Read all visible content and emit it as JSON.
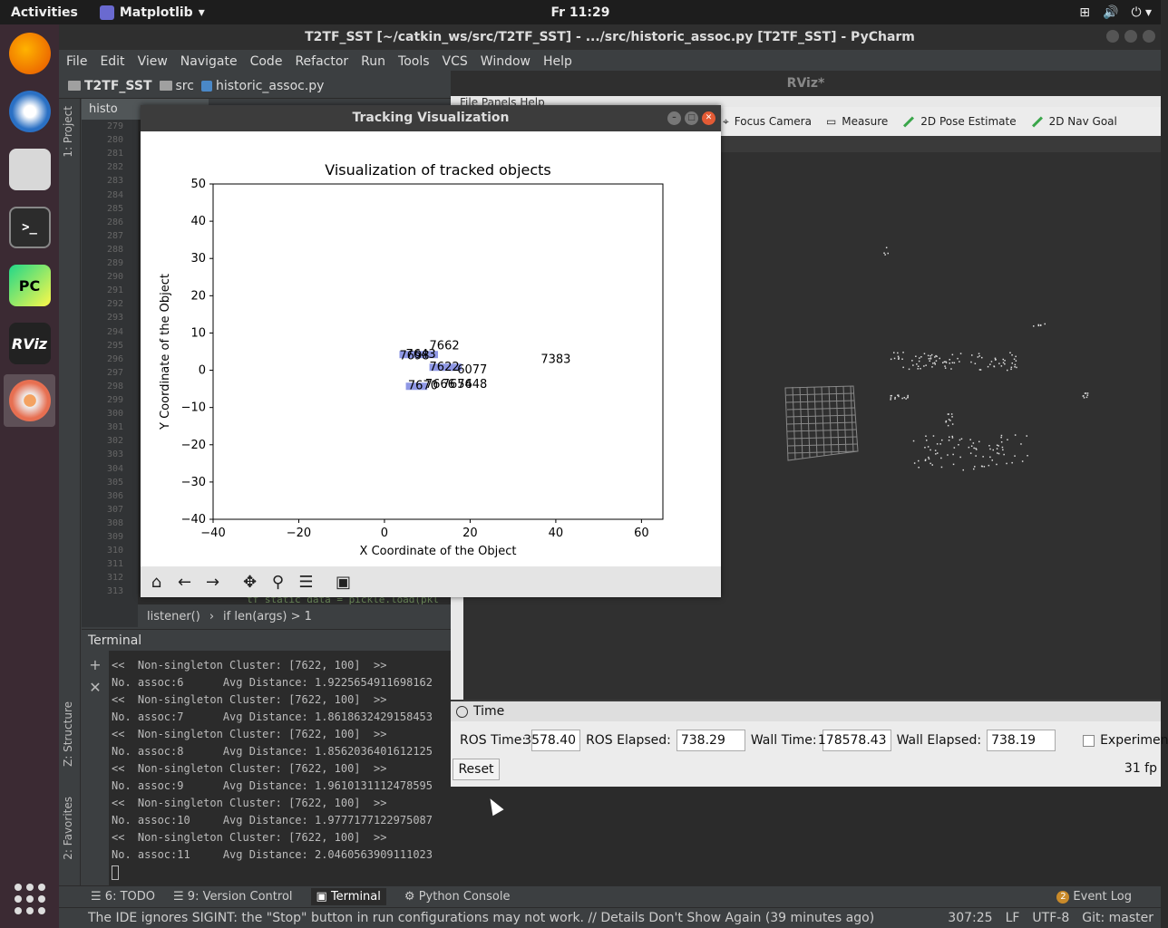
{
  "topbar": {
    "activities": "Activities",
    "app_name": "Matplotlib",
    "clock": "Fr 11:29"
  },
  "dock": {
    "items": [
      "firefox-icon",
      "thunderbird-icon",
      "files-icon",
      "terminal-icon",
      "pycharm-icon",
      "rviz-icon",
      "ros-app-icon"
    ],
    "pycharm_label": "PC",
    "rviz_label": "RViz"
  },
  "pycharm": {
    "title": "T2TF_SST [~/catkin_ws/src/T2TF_SST] - .../src/historic_assoc.py [T2TF_SST] - PyCharm",
    "menu": [
      "File",
      "Edit",
      "View",
      "Navigate",
      "Code",
      "Refactor",
      "Run",
      "Tools",
      "VCS",
      "Window",
      "Help"
    ],
    "nav": {
      "project": "T2TF_SST",
      "folder": "src",
      "file": "historic_assoc.py"
    },
    "editor_tab": "histo",
    "line_numbers": [
      "279",
      "280",
      "281",
      "282",
      "283",
      "284",
      "285",
      "286",
      "287",
      "288",
      "289",
      "290",
      "291",
      "292",
      "293",
      "294",
      "295",
      "296",
      "297",
      "298",
      "299",
      "300",
      "301",
      "302",
      "303",
      "304",
      "305",
      "306",
      "307",
      "308",
      "309",
      "310",
      "311",
      "312",
      "313"
    ],
    "code_line": "tf_static_data = pickle.load(pkl",
    "breadcrumb": [
      "listener()",
      "if len(args) > 1"
    ],
    "left_tabs": {
      "project": "1: Project",
      "structure": "Z: Structure",
      "favorites": "2: Favorites"
    },
    "terminal_title": "Terminal",
    "terminal_lines": [
      "<<  Non-singleton Cluster: [7622, 100]  >>",
      "No. assoc:6      Avg Distance: 1.9225654911698162",
      "<<  Non-singleton Cluster: [7622, 100]  >>",
      "No. assoc:7      Avg Distance: 1.8618632429158453",
      "<<  Non-singleton Cluster: [7622, 100]  >>",
      "No. assoc:8      Avg Distance: 1.8562036401612125",
      "<<  Non-singleton Cluster: [7622, 100]  >>",
      "No. assoc:9      Avg Distance: 1.9610131112478595",
      "<<  Non-singleton Cluster: [7622, 100]  >>",
      "No. assoc:10     Avg Distance: 1.9777177122975087",
      "<<  Non-singleton Cluster: [7622, 100]  >>",
      "No. assoc:11     Avg Distance: 2.0460563909111023"
    ],
    "tool_tabs": {
      "todo": "6: TODO",
      "vcs": "9: Version Control",
      "terminal": "Terminal",
      "console": "Python Console",
      "event_log": "Event Log",
      "event_count": "2"
    },
    "status": {
      "message": "The IDE ignores SIGINT: the \"Stop\" button in run configurations may not work. // Details Don't Show Again (39 minutes ago)",
      "position": "307:25",
      "line_sep": "LF",
      "encoding": "UTF-8",
      "git": "Git: master"
    }
  },
  "rviz": {
    "title": "RViz*",
    "menu": "File  Panels  Help",
    "tools": [
      "Focus Camera",
      "Measure",
      "2D Pose Estimate",
      "2D Nav Goal"
    ],
    "time_panel": {
      "title": "Time",
      "ros_time_label": "ROS Time:",
      "ros_time": "3578.40",
      "ros_elapsed_label": "ROS Elapsed:",
      "ros_elapsed": "738.29",
      "wall_time_label": "Wall Time:",
      "wall_time": "178578.43",
      "wall_elapsed_label": "Wall Elapsed:",
      "wall_elapsed": "738.19",
      "experimental": "Experimen",
      "reset": "Reset",
      "fps": "31 fp"
    }
  },
  "matplotlib": {
    "window_title": "Tracking Visualization",
    "toolbar": [
      "home-icon",
      "back-icon",
      "forward-icon",
      "pan-icon",
      "zoom-icon",
      "configure-icon",
      "save-icon"
    ]
  },
  "chart_data": {
    "type": "scatter",
    "title": "Visualization of tracked objects",
    "xlabel": "X Coordinate of the Object",
    "ylabel": "Y Coordinate of the Object",
    "xlim": [
      -40,
      65
    ],
    "ylim": [
      -40,
      50
    ],
    "xticks": [
      -40,
      -20,
      0,
      20,
      40,
      60
    ],
    "yticks": [
      -40,
      -30,
      -20,
      -10,
      0,
      10,
      20,
      30,
      40,
      50
    ],
    "grid": false,
    "labels": [
      {
        "text": "7662",
        "x": 14,
        "y": 6.5
      },
      {
        "text": "7643",
        "x": 8.5,
        "y": 4.2
      },
      {
        "text": "7698",
        "x": 7,
        "y": 3.8
      },
      {
        "text": "7383",
        "x": 40,
        "y": 2.8
      },
      {
        "text": "7622",
        "x": 14,
        "y": 0.8
      },
      {
        "text": "6077",
        "x": 20.5,
        "y": 0
      },
      {
        "text": "7670",
        "x": 9,
        "y": -4.3
      },
      {
        "text": "7666",
        "x": 13,
        "y": -3.9
      },
      {
        "text": "7654",
        "x": 17,
        "y": -3.9
      },
      {
        "text": "7648",
        "x": 20.5,
        "y": -3.9
      }
    ],
    "tracks": [
      {
        "x": [
          3.5,
          12.5
        ],
        "y": [
          4.2,
          4.2
        ]
      },
      {
        "x": [
          10.5,
          18
        ],
        "y": [
          0.8,
          0.8
        ]
      },
      {
        "x": [
          5,
          10
        ],
        "y": [
          -4.3,
          -4.3
        ]
      }
    ],
    "track_color": "#7b86e0"
  }
}
